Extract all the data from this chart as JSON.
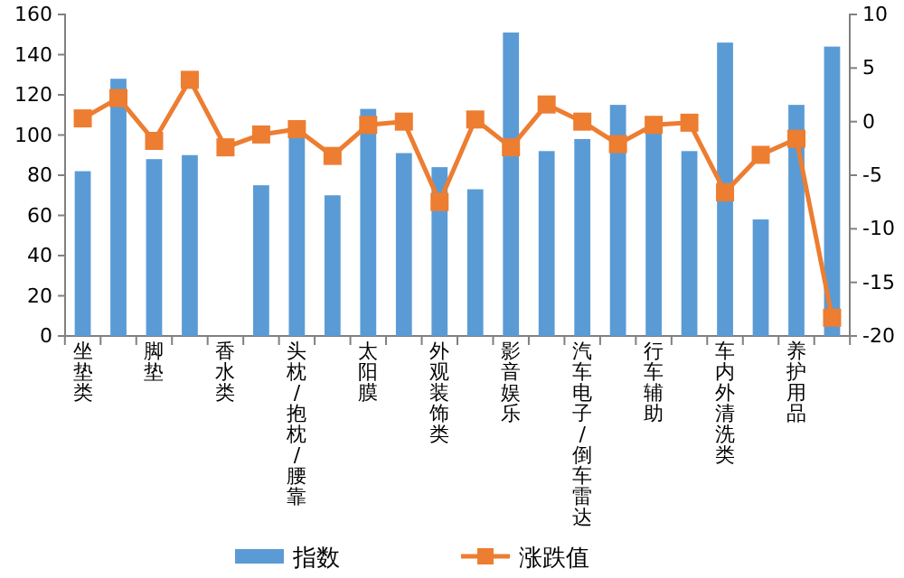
{
  "chart_data": {
    "type": "bar",
    "categories": [
      "坐垫类",
      null,
      "脚垫",
      null,
      "香水类",
      null,
      "头枕/抱枕/腰靠",
      null,
      "太阳膜",
      null,
      "外观装饰类",
      null,
      "影音娱乐",
      null,
      "汽车电子/倒车雷达",
      null,
      "行车辅助",
      null,
      "车内外清洗类",
      null,
      "养护用品",
      null
    ],
    "series": [
      {
        "name": "指数",
        "color": "#5b9bd5",
        "values": [
          82,
          128,
          88,
          90,
          null,
          75,
          99,
          70,
          113,
          91,
          84,
          73,
          151,
          92,
          98,
          115,
          103,
          92,
          146,
          58,
          115,
          144
        ]
      },
      {
        "name": "涨跌值",
        "type": "line",
        "axis": "y2",
        "color": "#ed7d31",
        "marker": "square",
        "values": [
          0.3,
          2.2,
          -1.8,
          3.9,
          -2.4,
          -1.2,
          -0.7,
          -3.2,
          -0.3,
          0,
          -7.5,
          0.2,
          -2.4,
          1.6,
          0,
          -2.1,
          -0.3,
          -0.1,
          -6.6,
          -3.1,
          -1.6,
          -18.3
        ]
      }
    ],
    "ylim": [
      0,
      160
    ],
    "yticks": [
      0,
      20,
      40,
      60,
      80,
      100,
      120,
      140,
      160
    ],
    "y2lim": [
      -20,
      10
    ],
    "y2ticks": [
      -20,
      -15,
      -10,
      -5,
      0,
      5,
      10
    ],
    "grid": false,
    "legend": "bottom"
  }
}
